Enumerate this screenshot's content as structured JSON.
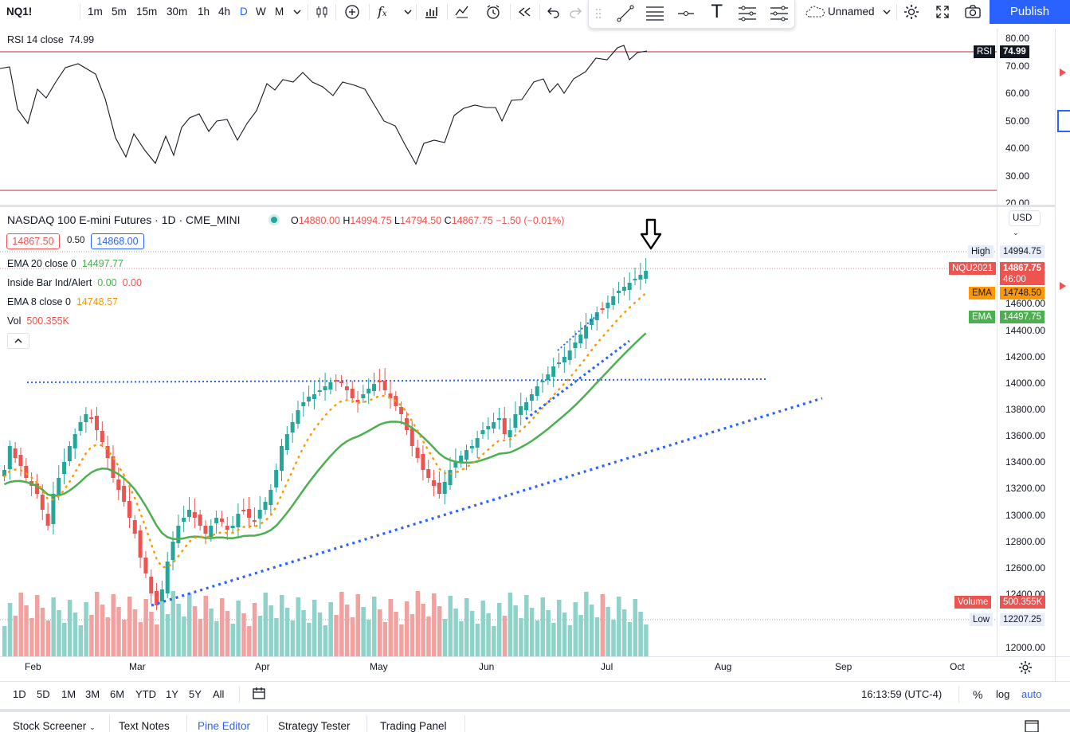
{
  "toolbar": {
    "symbol": "NQ1!",
    "intervals": [
      "1m",
      "5m",
      "15m",
      "30m",
      "1h",
      "4h",
      "D",
      "W",
      "M"
    ],
    "active_interval": "D",
    "layout_name": "Unnamed",
    "publish_label": "Publish",
    "icons": [
      "candles-icon",
      "add-compare-icon",
      "indicators-icon",
      "chevron-down-icon",
      "bar-style-icon",
      "templates-icon",
      "alert-icon",
      "replay-icon",
      "undo-icon",
      "redo-icon",
      "trendline-icon",
      "fib-icon",
      "horizontal-line-icon",
      "text-icon",
      "pattern-icon",
      "indicator-lines-icon",
      "cloud-icon",
      "settings-icon",
      "fullscreen-icon",
      "camera-icon"
    ]
  },
  "rsi": {
    "label": "RSI 14 close",
    "value": "74.99",
    "tag_label": "RSI",
    "tag_value": "74.99",
    "ticks": [
      "80.00",
      "70.00",
      "60.00",
      "50.00",
      "40.00",
      "30.00",
      "20.00"
    ]
  },
  "main": {
    "title": "NASDAQ 100 E-mini Futures · 1D · CME_MINI",
    "ohlc": {
      "o_label": "O",
      "o": "14880.00",
      "h_label": "H",
      "h": "14994.75",
      "l_label": "L",
      "l": "14794.50",
      "c_label": "C",
      "c": "14867.75",
      "chg": "−1.50 (−0.01%)"
    },
    "bid": "14867.50",
    "spread": "0.50",
    "ask": "14868.00",
    "ema20": {
      "label": "EMA 20 close 0",
      "value": "14497.77"
    },
    "inside_bar": {
      "label": "Inside Bar Ind/Alert",
      "v1": "0.00",
      "v2": "0.00"
    },
    "ema8": {
      "label": "EMA 8 close 0",
      "value": "14748.57"
    },
    "vol": {
      "label": "Vol",
      "value": "500.355K"
    },
    "currency": "USD",
    "price_ticks": [
      "14600.00",
      "14400.00",
      "14200.00",
      "14000.00",
      "13800.00",
      "13600.00",
      "13400.00",
      "13200.00",
      "13000.00",
      "12800.00",
      "12600.00",
      "12400.00",
      "12000.00"
    ],
    "tags": {
      "high_label": "High",
      "high_value": "14994.75",
      "sym_label": "NQU2021",
      "sym_value": "14867.75",
      "countdown": "46:00",
      "ema8_label": "EMA",
      "ema8_value": "14748.50",
      "ema20_label": "EMA",
      "ema20_value": "14497.75",
      "vol_label": "Volume",
      "vol_value": "500.355K",
      "low_label": "Low",
      "low_value": "12207.25"
    },
    "months": [
      "Feb",
      "Mar",
      "Apr",
      "May",
      "Jun",
      "Jul",
      "Aug",
      "Sep",
      "Oct"
    ]
  },
  "bottom": {
    "ranges": [
      "1D",
      "5D",
      "1M",
      "3M",
      "6M",
      "YTD",
      "1Y",
      "5Y",
      "All"
    ],
    "clock": "16:13:59 (UTC-4)",
    "pct": "%",
    "log": "log",
    "auto": "auto",
    "tabs": [
      "Stock Screener",
      "Text Notes",
      "Pine Editor",
      "Strategy Tester",
      "Trading Panel"
    ]
  },
  "colors": {
    "up": "#26a69a",
    "down": "#ef5350",
    "up_vol": "#8fd2c9",
    "down_vol": "#f1a2a0",
    "ema20": "#4caf50",
    "ema8": "#ff9800",
    "accent": "#2962ff",
    "dotted": "#2962ff"
  }
}
